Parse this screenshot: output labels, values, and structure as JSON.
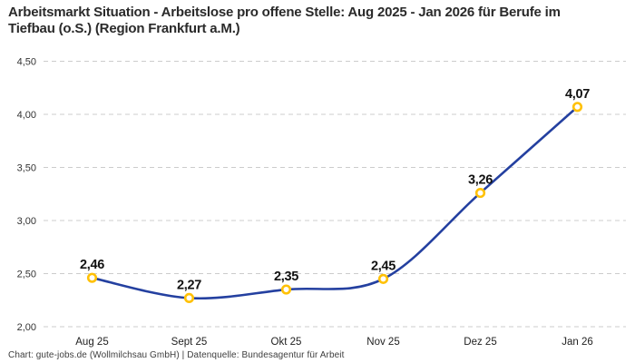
{
  "title": "Arbeitsmarkt Situation - Arbeitslose pro offene Stelle: Aug 2025 - Jan 2026 für Berufe im Tiefbau (o.S.) (Region Frankfurt a.M.)",
  "footer": "Chart: gute-jobs.de (Wollmilchsau GmbH) | Datenquelle: Bundesagentur für Arbeit",
  "chart_data": {
    "type": "line",
    "title": "Arbeitsmarkt Situation - Arbeitslose pro offene Stelle: Aug 2025 - Jan 2026 für Berufe im Tiefbau (o.S.) (Region Frankfurt a.M.)",
    "categories": [
      "Aug 25",
      "Sept 25",
      "Okt 25",
      "Nov 25",
      "Dez 25",
      "Jan 26"
    ],
    "series": [
      {
        "name": "Arbeitslose pro offene Stelle",
        "values": [
          2.46,
          2.27,
          2.35,
          2.45,
          3.26,
          4.07
        ]
      }
    ],
    "value_labels": [
      "2,46",
      "2,27",
      "2,35",
      "2,45",
      "3,26",
      "4,07"
    ],
    "y_ticks": [
      "2,00",
      "2,50",
      "3,00",
      "3,50",
      "4,00",
      "4,50"
    ],
    "y_tick_values": [
      2.0,
      2.5,
      3.0,
      3.5,
      4.0,
      4.5
    ],
    "ylim": [
      2.0,
      4.5
    ],
    "xlabel": "",
    "ylabel": "",
    "grid": "horizontal-dashed",
    "legend": "none",
    "smooth": true,
    "colors": {
      "line": "#2440A0",
      "marker_ring": "#FFC107",
      "marker_fill": "#FFFFFF",
      "gridline": "#CCCCCC",
      "title_text": "#2A2A2A",
      "background": "#FFFFFF"
    }
  }
}
